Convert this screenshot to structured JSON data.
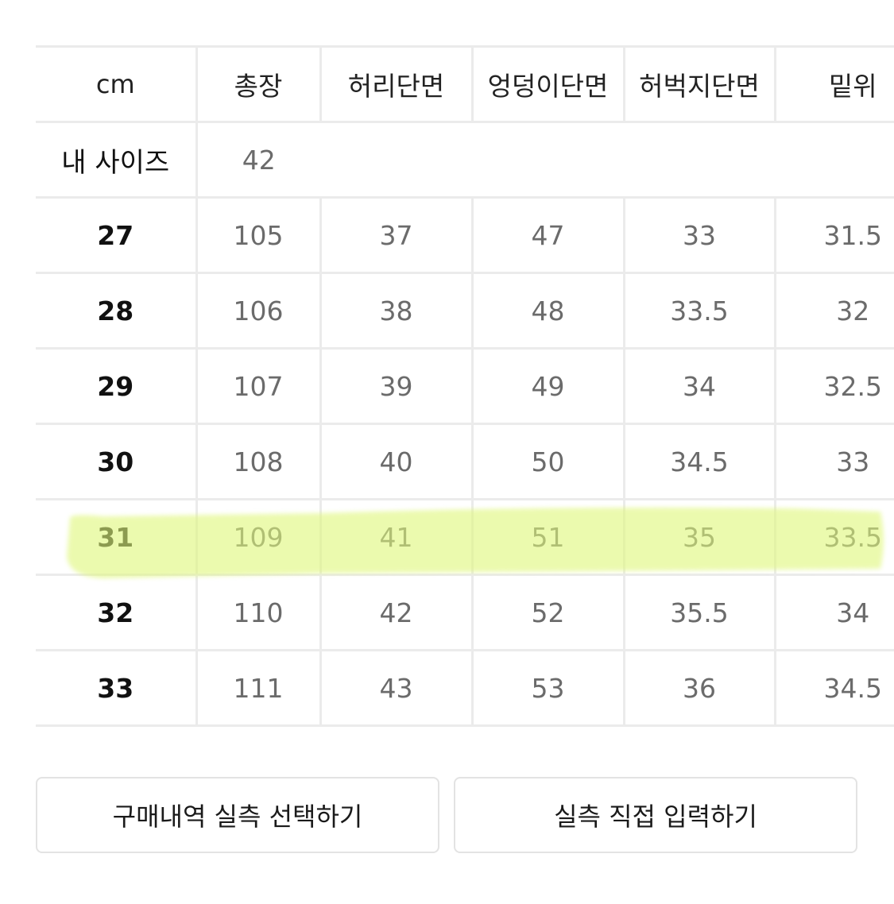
{
  "size_table": {
    "headers": [
      "cm",
      "총장",
      "허리단면",
      "엉덩이단면",
      "허벅지단면",
      "밑위"
    ],
    "my_size": {
      "label": "내 사이즈",
      "values": [
        "42"
      ]
    },
    "rows": [
      {
        "size": "27",
        "values": [
          "105",
          "37",
          "47",
          "33",
          "31.5"
        ]
      },
      {
        "size": "28",
        "values": [
          "106",
          "38",
          "48",
          "33.5",
          "32"
        ]
      },
      {
        "size": "29",
        "values": [
          "107",
          "39",
          "49",
          "34",
          "32.5"
        ]
      },
      {
        "size": "30",
        "values": [
          "108",
          "40",
          "50",
          "34.5",
          "33"
        ]
      },
      {
        "size": "31",
        "values": [
          "109",
          "41",
          "51",
          "35",
          "33.5"
        ]
      },
      {
        "size": "32",
        "values": [
          "110",
          "42",
          "52",
          "35.5",
          "34"
        ]
      },
      {
        "size": "33",
        "values": [
          "111",
          "43",
          "53",
          "36",
          "34.5"
        ]
      }
    ],
    "highlighted_size": "31",
    "highlight_color": "#dff77a"
  },
  "buttons": {
    "purchase_history": "구매내역 실측 선택하기",
    "manual_input": "실측 직접 입력하기"
  }
}
